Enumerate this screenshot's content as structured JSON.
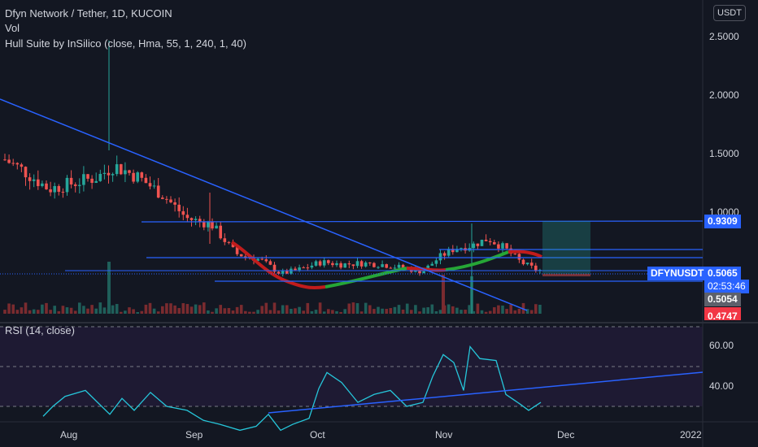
{
  "legend": {
    "title": "Dfyn Network / Tether, 1D, KUCOIN",
    "vol": "Vol",
    "hull": "Hull Suite by InSilico (close, Hma, 55, 1, 240, 1, 40)"
  },
  "rsi_label": "RSI (14, close)",
  "currency_button": "USDT",
  "price_axis": {
    "ticks": [
      "2.5000",
      "2.0000",
      "1.5000",
      "1.0000"
    ]
  },
  "rsi_axis": {
    "ticks": [
      "60.00",
      "40.00"
    ]
  },
  "time_axis": {
    "ticks": [
      "Aug",
      "Sep",
      "Oct",
      "Nov",
      "Dec",
      "2022"
    ]
  },
  "price_labels": {
    "resistance": "0.9309",
    "symbol": "DFYNUSDT",
    "last_price": "0.5065",
    "countdown": "02:53:46",
    "stop": "0.5054",
    "partial": "0.4747"
  },
  "colors": {
    "background": "#131722",
    "up": "#26a69a",
    "down": "#ef5350",
    "trend": "#2962ff",
    "rsi": "#26c6da",
    "hull_up": "#26a636",
    "hull_down": "#c21c1c"
  }
}
